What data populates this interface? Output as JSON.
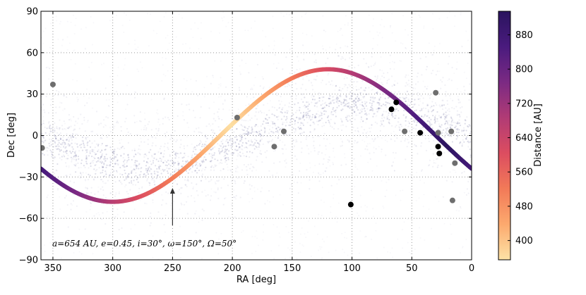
{
  "chart_data": {
    "type": "scatter",
    "xlabel": "RA [deg]",
    "ylabel": "Dec [deg]",
    "xlim": [
      360,
      0
    ],
    "ylim": [
      -90,
      90
    ],
    "x_ticks": [
      350,
      300,
      250,
      200,
      150,
      100,
      50,
      0
    ],
    "y_ticks": [
      -90,
      -60,
      -30,
      0,
      30,
      60,
      90
    ],
    "grid": true,
    "colorbar": {
      "label": "Distance [AU]",
      "ticks": [
        400,
        480,
        560,
        640,
        720,
        800,
        880
      ],
      "range": [
        355,
        935
      ],
      "colormap": "magma-like",
      "color_stops": [
        "#fde3a6",
        "#fca96e",
        "#f27a58",
        "#dc4d60",
        "#b13b75",
        "#7b2a83",
        "#4a1b7e",
        "#2a145e"
      ]
    },
    "orbit_curve": {
      "a_AU": 654,
      "e": 0.45,
      "i_deg": 30,
      "omega_deg": 150,
      "Omega_deg": 50,
      "dec_amplitude_deg": 48,
      "node_ra_deg": 210,
      "distance_min_AU": 360,
      "distance_max_AU": 930,
      "closest_point_ra_deg": 200
    },
    "background_band": {
      "description_color": "#3a3a7a",
      "amplitude_deg": 23,
      "node_ra_deg": 180
    },
    "points": [
      {
        "ra": 359,
        "dec": -9,
        "color": "gray"
      },
      {
        "ra": 350,
        "dec": 37,
        "color": "gray"
      },
      {
        "ra": 196,
        "dec": 13,
        "color": "gray"
      },
      {
        "ra": 165,
        "dec": -8,
        "color": "gray"
      },
      {
        "ra": 157,
        "dec": 3,
        "color": "gray"
      },
      {
        "ra": 101,
        "dec": -50,
        "color": "black"
      },
      {
        "ra": 67,
        "dec": 19,
        "color": "black"
      },
      {
        "ra": 63,
        "dec": 24,
        "color": "black"
      },
      {
        "ra": 56,
        "dec": 3,
        "color": "gray"
      },
      {
        "ra": 43,
        "dec": 2,
        "color": "black"
      },
      {
        "ra": 30,
        "dec": 31,
        "color": "gray"
      },
      {
        "ra": 28,
        "dec": 2,
        "color": "gray"
      },
      {
        "ra": 28,
        "dec": -8,
        "color": "black"
      },
      {
        "ra": 27,
        "dec": -13,
        "color": "black"
      },
      {
        "ra": 17,
        "dec": 3,
        "color": "gray"
      },
      {
        "ra": 16,
        "dec": -47,
        "color": "gray"
      },
      {
        "ra": 14,
        "dec": -20,
        "color": "gray"
      }
    ],
    "arrow": {
      "ra": 250,
      "dec_start": -65,
      "dec_end": -38
    },
    "annotation": "a=654 AU, e=0.45, i=30°, ω=150°, Ω=50°"
  }
}
